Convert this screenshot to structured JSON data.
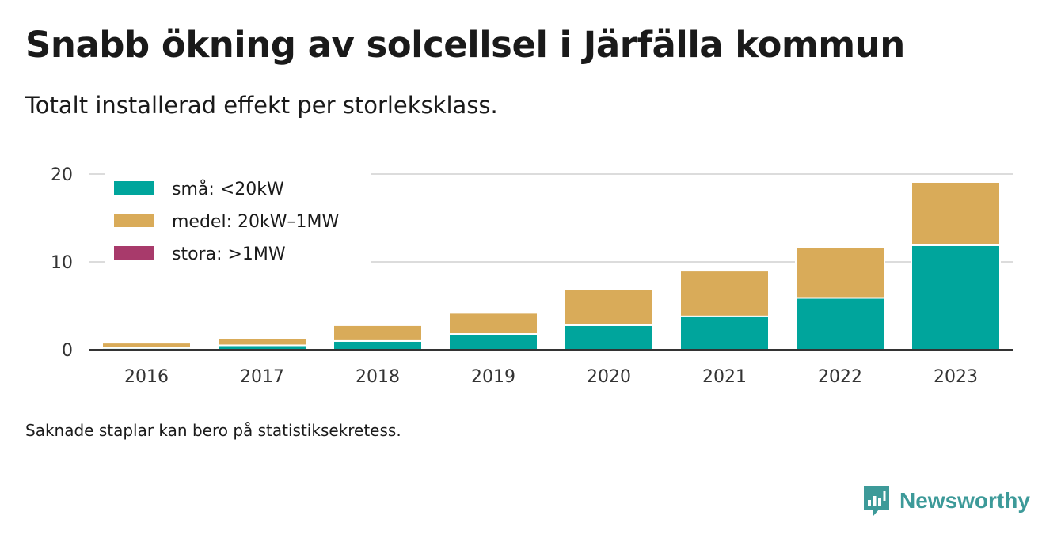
{
  "title": "Snabb ökning av solcellsel i Järfälla kommun",
  "subtitle": "Totalt installerad effekt per storleksklass.",
  "note": "Saknade staplar kan bero på statistiksekretess.",
  "brand": {
    "name": "Newsworthy",
    "icon": "newsworthy-logo-icon",
    "color": "#3d9a99"
  },
  "chart_data": {
    "type": "bar",
    "stacked": true,
    "categories": [
      "2016",
      "2017",
      "2018",
      "2019",
      "2020",
      "2021",
      "2022",
      "2023"
    ],
    "series": [
      {
        "name": "små: <20kW",
        "color": "#00a59c",
        "values": [
          0.2,
          0.5,
          1.0,
          1.8,
          2.8,
          3.8,
          5.9,
          11.9
        ]
      },
      {
        "name": "medel: 20kW–1MW",
        "color": "#d9ab59",
        "values": [
          0.6,
          0.8,
          1.8,
          2.4,
          4.1,
          5.2,
          5.8,
          7.2
        ]
      },
      {
        "name": "stora: >1MW",
        "color": "#a83a6b",
        "values": [
          0,
          0,
          0,
          0,
          0,
          0,
          0,
          0
        ]
      }
    ],
    "yticks": [
      0,
      10,
      20
    ],
    "ylim": [
      0,
      20
    ],
    "grid": true,
    "legend_position": "top-left"
  }
}
